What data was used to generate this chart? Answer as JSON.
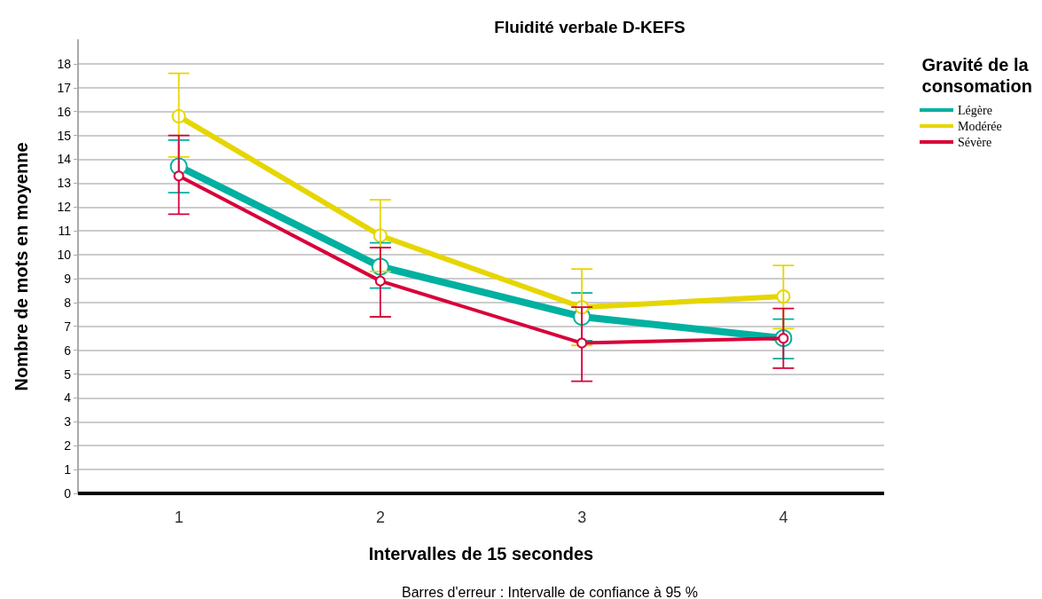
{
  "chart_data": {
    "type": "line",
    "title": "Fluidité verbale D-KEFS",
    "xlabel": "Intervalles de 15 secondes",
    "ylabel": "Nombre de mots en moyenne",
    "legend_title": "Gravité de la consomation",
    "annotations": [
      "Barres d'erreur : Intervalle de confiance à 95 %"
    ],
    "categories": [
      "1",
      "2",
      "3",
      "4"
    ],
    "series": [
      {
        "name": "Légère",
        "color": "#00b0a0",
        "values": [
          13.7,
          9.5,
          7.4,
          6.5
        ],
        "errors": [
          [
            12.6,
            14.8
          ],
          [
            8.6,
            10.5
          ],
          [
            6.4,
            8.4
          ],
          [
            5.65,
            7.3
          ]
        ]
      },
      {
        "name": "Modérée",
        "color": "#e6d600",
        "values": [
          15.8,
          10.8,
          7.8,
          8.25
        ],
        "errors": [
          [
            14.1,
            17.6
          ],
          [
            9.3,
            12.3
          ],
          [
            6.2,
            9.4
          ],
          [
            6.9,
            9.55
          ]
        ]
      },
      {
        "name": "Sévère",
        "color": "#d8003a",
        "values": [
          13.3,
          8.9,
          6.3,
          6.5
        ],
        "errors": [
          [
            11.7,
            15.0
          ],
          [
            7.4,
            10.3
          ],
          [
            4.7,
            7.8
          ],
          [
            5.25,
            7.75
          ]
        ]
      }
    ],
    "ylim": [
      0,
      19
    ],
    "yticks": [
      0,
      1,
      2,
      3,
      4,
      5,
      6,
      7,
      8,
      9,
      10,
      11,
      12,
      13,
      14,
      15,
      16,
      17,
      18
    ],
    "grid": "y",
    "legend": "top right",
    "marker": "circle",
    "line_style": "solid"
  }
}
